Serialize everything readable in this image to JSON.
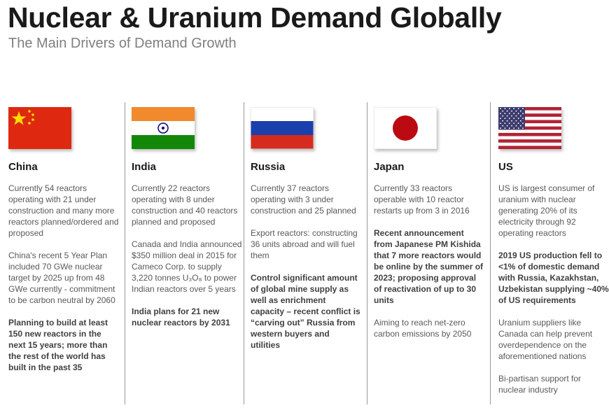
{
  "header": {
    "title": "Nuclear & Uranium Demand Globally",
    "subtitle": "The Main Drivers of Demand Growth"
  },
  "countries": [
    {
      "name": "China",
      "flag_icon": "china-flag-icon",
      "paragraphs": [
        {
          "text": "Currently 54 reactors operating with 21 under construction and many more reactors planned/ordered and proposed",
          "bold": false
        },
        {
          "text": "China's recent 5 Year Plan included 70 GWe nuclear target by 2025 up from 48 GWe currently - commitment to be carbon neutral by 2060",
          "bold": false
        },
        {
          "text": "Planning to build at least 150 new reactors in the next 15 years; more than the rest of the world has built in the past 35",
          "bold": true
        }
      ]
    },
    {
      "name": "India",
      "flag_icon": "india-flag-icon",
      "paragraphs": [
        {
          "text": "Currently 22 reactors operating with 8 under construction and 40 reactors planned and proposed",
          "bold": false
        },
        {
          "text": "Canada and India announced $350 million deal in 2015 for Cameco Corp. to supply 3,220 tonnes U₃O₈ to power Indian reactors over 5 years",
          "bold": false
        },
        {
          "text": "India plans for 21 new nuclear reactors by 2031",
          "bold": true
        }
      ]
    },
    {
      "name": "Russia",
      "flag_icon": "russia-flag-icon",
      "paragraphs": [
        {
          "text": "Currently 37 reactors operating with 3 under construction and 25 planned",
          "bold": false
        },
        {
          "text": "Export reactors: constructing 36 units abroad and will fuel them",
          "bold": false
        },
        {
          "text": "Control significant amount of global mine supply as well as enrichment capacity – recent conflict is “carving out” Russia from western buyers and utilities",
          "bold": true
        }
      ]
    },
    {
      "name": "Japan",
      "flag_icon": "japan-flag-icon",
      "paragraphs": [
        {
          "text": "Currently 33 reactors operable with 10 reactor restarts up from 3 in 2016",
          "bold": false
        },
        {
          "text": "Recent announcement from Japanese PM Kishida that 7 more reactors would be online by the summer of 2023; proposing approval of reactivation of up to 30 units",
          "bold": true
        },
        {
          "text": "Aiming to reach net-zero carbon emissions by 2050",
          "bold": false
        }
      ]
    },
    {
      "name": "US",
      "flag_icon": "us-flag-icon",
      "paragraphs": [
        {
          "text": "US is largest consumer of uranium with nuclear generating 20% of  its electricity through 92 operating reactors",
          "bold": false
        },
        {
          "text": "2019 US production fell to <1% of domestic demand with Russia, Kazakhstan, Uzbekistan supplying ~40% of US requirements",
          "bold": true
        },
        {
          "text": "Uranium suppliers like Canada can help prevent overdependence on the aforementioned nations",
          "bold": false
        },
        {
          "text": "Bi-partisan support for nuclear industry",
          "bold": false
        }
      ]
    }
  ]
}
